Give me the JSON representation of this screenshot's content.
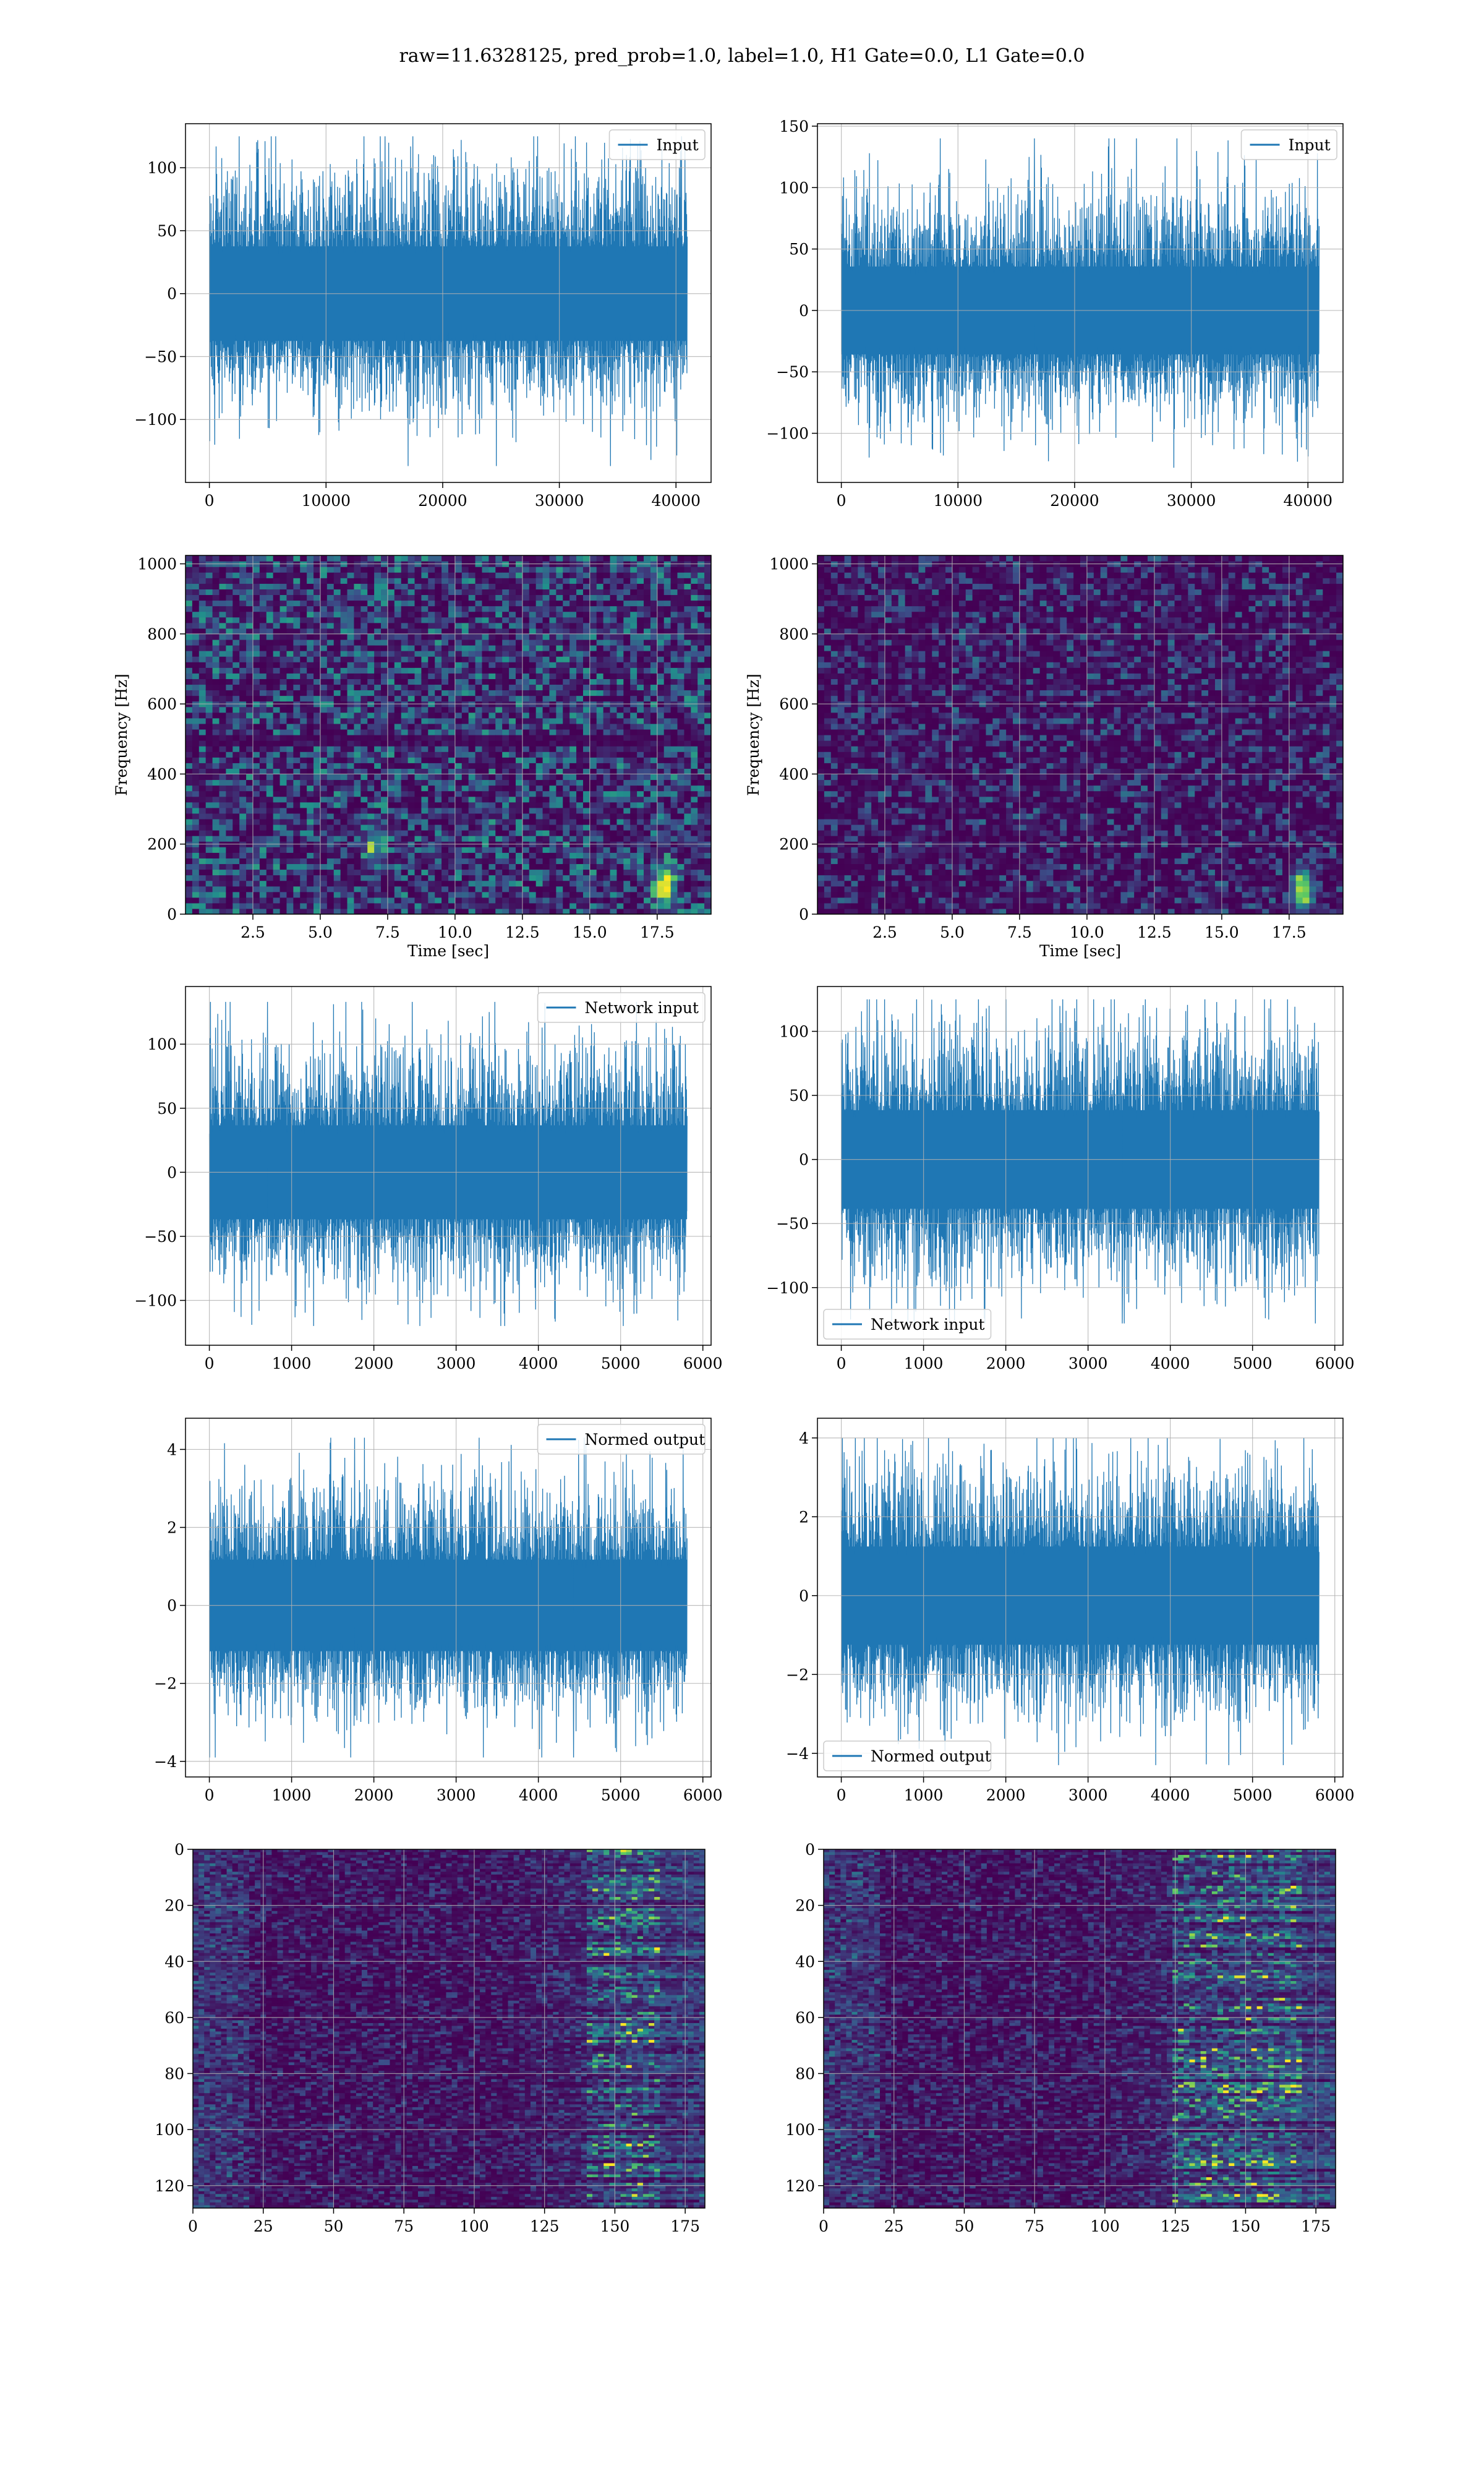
{
  "figure": {
    "suptitle": "raw=11.6328125, pred_prob=1.0, label=1.0, H1 Gate=0.0, L1 Gate=0.0"
  },
  "colors": {
    "line": "#1f77b4",
    "grid": "#b0b0b0",
    "viridis_low": "#440154",
    "viridis_mid": "#21918c",
    "viridis_high": "#fde725"
  },
  "chart_data": [
    {
      "id": "input-h1",
      "type": "line",
      "title": "",
      "xlabel": "",
      "ylabel": "",
      "xlim": [
        -2048,
        43008
      ],
      "ylim": [
        -150,
        135
      ],
      "xticks": [
        0,
        10000,
        20000,
        30000,
        40000
      ],
      "xtick_labels": [
        "0",
        "10000",
        "20000",
        "30000",
        "40000"
      ],
      "yticks": [
        -100,
        -50,
        0,
        50,
        100
      ],
      "ytick_labels": [
        "−100",
        "−50",
        "0",
        "50",
        "100"
      ],
      "grid": true,
      "legend_position": "upper right",
      "series": [
        {
          "name": "Input",
          "x_range": [
            0,
            40960
          ],
          "envelope": [
            -100,
            105
          ],
          "outlier_max": 125,
          "outlier_min": -137
        }
      ]
    },
    {
      "id": "input-l1",
      "type": "line",
      "title": "",
      "xlabel": "",
      "ylabel": "",
      "xlim": [
        -2048,
        43008
      ],
      "ylim": [
        -140,
        152
      ],
      "xticks": [
        0,
        10000,
        20000,
        30000,
        40000
      ],
      "xtick_labels": [
        "0",
        "10000",
        "20000",
        "30000",
        "40000"
      ],
      "yticks": [
        -100,
        -50,
        0,
        50,
        100,
        150
      ],
      "ytick_labels": [
        "−100",
        "−50",
        "0",
        "50",
        "100",
        "150"
      ],
      "grid": true,
      "legend_position": "upper right",
      "series": [
        {
          "name": "Input",
          "x_range": [
            0,
            40960
          ],
          "envelope": [
            -95,
            100
          ],
          "outlier_max": 140,
          "outlier_min": -128
        }
      ]
    },
    {
      "id": "spectrogram-h1",
      "type": "heatmap",
      "title": "",
      "xlabel": "Time [sec]",
      "ylabel": "Frequency [Hz]",
      "xlim": [
        0,
        19.5
      ],
      "ylim": [
        0,
        1024
      ],
      "xticks": [
        2.5,
        5.0,
        7.5,
        10.0,
        12.5,
        15.0,
        17.5
      ],
      "xtick_labels": [
        "2.5",
        "5.0",
        "7.5",
        "10.0",
        "12.5",
        "15.0",
        "17.5"
      ],
      "yticks": [
        0,
        200,
        400,
        600,
        800,
        1000
      ],
      "ytick_labels": [
        "0",
        "200",
        "400",
        "600",
        "800",
        "1000"
      ],
      "grid": true,
      "colormap": "viridis",
      "features": [
        {
          "t": 17.8,
          "f": 80,
          "strength": 1.0
        },
        {
          "t": 7.0,
          "f": 200,
          "strength": 0.5
        }
      ],
      "dark_band_hz": 490
    },
    {
      "id": "spectrogram-l1",
      "type": "heatmap",
      "title": "",
      "xlabel": "Time [sec]",
      "ylabel": "Frequency [Hz]",
      "xlim": [
        0,
        19.5
      ],
      "ylim": [
        0,
        1024
      ],
      "xticks": [
        2.5,
        5.0,
        7.5,
        10.0,
        12.5,
        15.0,
        17.5
      ],
      "xtick_labels": [
        "2.5",
        "5.0",
        "7.5",
        "10.0",
        "12.5",
        "15.0",
        "17.5"
      ],
      "yticks": [
        0,
        200,
        400,
        600,
        800,
        1000
      ],
      "ytick_labels": [
        "0",
        "200",
        "400",
        "600",
        "800",
        "1000"
      ],
      "grid": true,
      "colormap": "viridis",
      "features": [
        {
          "t": 18.0,
          "f": 70,
          "strength": 1.0
        }
      ]
    },
    {
      "id": "network-input-h1",
      "type": "line",
      "title": "",
      "xlabel": "",
      "ylabel": "",
      "xlim": [
        -290,
        6100
      ],
      "ylim": [
        -135,
        145
      ],
      "xticks": [
        0,
        1000,
        2000,
        3000,
        4000,
        5000,
        6000
      ],
      "xtick_labels": [
        "0",
        "1000",
        "2000",
        "3000",
        "4000",
        "5000",
        "6000"
      ],
      "yticks": [
        -100,
        -50,
        0,
        50,
        100
      ],
      "ytick_labels": [
        "−100",
        "−50",
        "0",
        "50",
        "100"
      ],
      "grid": true,
      "legend_position": "upper right",
      "series": [
        {
          "name": "Network input",
          "x_range": [
            0,
            5808
          ],
          "envelope": [
            -100,
            100
          ],
          "outlier_max": 133,
          "outlier_min": -120
        }
      ]
    },
    {
      "id": "network-input-l1",
      "type": "line",
      "title": "",
      "xlabel": "",
      "ylabel": "",
      "xlim": [
        -290,
        6100
      ],
      "ylim": [
        -145,
        135
      ],
      "xticks": [
        0,
        1000,
        2000,
        3000,
        4000,
        5000,
        6000
      ],
      "xtick_labels": [
        "0",
        "1000",
        "2000",
        "3000",
        "4000",
        "5000",
        "6000"
      ],
      "yticks": [
        -100,
        -50,
        0,
        50,
        100
      ],
      "ytick_labels": [
        "−100",
        "−50",
        "0",
        "50",
        "100"
      ],
      "grid": true,
      "legend_position": "lower left",
      "series": [
        {
          "name": "Network input",
          "x_range": [
            0,
            5808
          ],
          "envelope": [
            -100,
            110
          ],
          "outlier_max": 125,
          "outlier_min": -128
        }
      ]
    },
    {
      "id": "normed-output-h1",
      "type": "line",
      "title": "",
      "xlabel": "",
      "ylabel": "",
      "xlim": [
        -290,
        6100
      ],
      "ylim": [
        -4.4,
        4.8
      ],
      "xticks": [
        0,
        1000,
        2000,
        3000,
        4000,
        5000,
        6000
      ],
      "xtick_labels": [
        "0",
        "1000",
        "2000",
        "3000",
        "4000",
        "5000",
        "6000"
      ],
      "yticks": [
        -4,
        -2,
        0,
        2,
        4
      ],
      "ytick_labels": [
        "−4",
        "−2",
        "0",
        "2",
        "4"
      ],
      "grid": true,
      "legend_position": "upper right",
      "series": [
        {
          "name": "Normed output",
          "x_range": [
            0,
            5808
          ],
          "envelope": [
            -3.2,
            3.2
          ],
          "outlier_max": 4.3,
          "outlier_min": -3.9
        }
      ]
    },
    {
      "id": "normed-output-l1",
      "type": "line",
      "title": "",
      "xlabel": "",
      "ylabel": "",
      "xlim": [
        -290,
        6100
      ],
      "ylim": [
        -4.6,
        4.5
      ],
      "xticks": [
        0,
        1000,
        2000,
        3000,
        4000,
        5000,
        6000
      ],
      "xtick_labels": [
        "0",
        "1000",
        "2000",
        "3000",
        "4000",
        "5000",
        "6000"
      ],
      "yticks": [
        -4,
        -2,
        0,
        2,
        4
      ],
      "ytick_labels": [
        "−4",
        "−2",
        "0",
        "2",
        "4"
      ],
      "grid": true,
      "legend_position": "lower left",
      "series": [
        {
          "name": "Normed output",
          "x_range": [
            0,
            5808
          ],
          "envelope": [
            -3.2,
            3.6
          ],
          "outlier_max": 4.0,
          "outlier_min": -4.3
        }
      ]
    },
    {
      "id": "feature-map-h1",
      "type": "heatmap",
      "title": "",
      "xlabel": "",
      "ylabel": "",
      "xlim": [
        0,
        182
      ],
      "ylim": [
        128,
        0
      ],
      "xticks": [
        0,
        25,
        50,
        75,
        100,
        125,
        150,
        175
      ],
      "xtick_labels": [
        "0",
        "25",
        "50",
        "75",
        "100",
        "125",
        "150",
        "175"
      ],
      "yticks": [
        0,
        20,
        40,
        60,
        80,
        100,
        120
      ],
      "ytick_labels": [
        "0",
        "20",
        "40",
        "60",
        "80",
        "100",
        "120"
      ],
      "grid": true,
      "colormap": "viridis",
      "rows": 128,
      "cols": 182,
      "bright_column_range": [
        140,
        165
      ]
    },
    {
      "id": "feature-map-l1",
      "type": "heatmap",
      "title": "",
      "xlabel": "",
      "ylabel": "",
      "xlim": [
        0,
        182
      ],
      "ylim": [
        128,
        0
      ],
      "xticks": [
        0,
        25,
        50,
        75,
        100,
        125,
        150,
        175
      ],
      "xtick_labels": [
        "0",
        "25",
        "50",
        "75",
        "100",
        "125",
        "150",
        "175"
      ],
      "yticks": [
        0,
        20,
        40,
        60,
        80,
        100,
        120
      ],
      "ytick_labels": [
        "0",
        "20",
        "40",
        "60",
        "80",
        "100",
        "120"
      ],
      "grid": true,
      "colormap": "viridis",
      "rows": 128,
      "cols": 182,
      "bright_column_range": [
        125,
        170
      ]
    }
  ]
}
